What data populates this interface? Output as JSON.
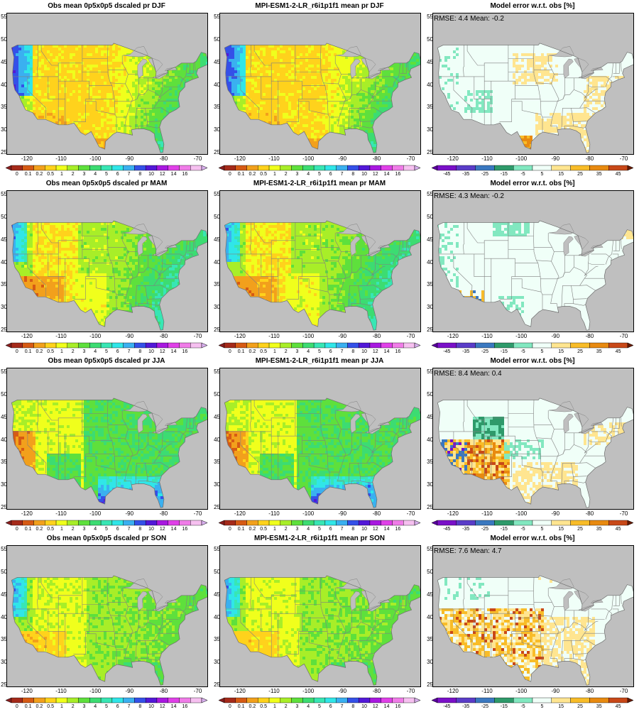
{
  "figure": {
    "colors": {
      "land_bg": "#bfbfbf",
      "state_lines": "#7f7f7f"
    },
    "precip_scale": {
      "labels": [
        "0",
        "0.1",
        "0.2",
        "0.5",
        "1",
        "2",
        "3",
        "4",
        "5",
        "6",
        "7",
        "8",
        "10",
        "12",
        "14",
        "16"
      ],
      "colors": [
        "#a52a1a",
        "#d65a14",
        "#f2a01c",
        "#ffd21c",
        "#f0ff1c",
        "#a8ee28",
        "#5ee03c",
        "#3cdc72",
        "#38e6b4",
        "#30e6e8",
        "#3ab0f0",
        "#3450e8",
        "#5218d8",
        "#a818e0",
        "#e040e8",
        "#f07ce8",
        "#f6c0f0"
      ],
      "under_color": "#8a1e1e",
      "over_color": "#d8b0ee"
    },
    "error_scale": {
      "labels": [
        "-45",
        "-35",
        "-25",
        "-15",
        "-5",
        "5",
        "15",
        "25",
        "35",
        "45"
      ],
      "colors": [
        "#7a10c8",
        "#5a3cc8",
        "#3a78c0",
        "#2e9a6a",
        "#82e8c0",
        "#f0fff8",
        "#ffe590",
        "#f8bc28",
        "#e88a10",
        "#c84818"
      ],
      "under_color": "#5a00a0",
      "over_color": "#6a1a00"
    },
    "xticks": [
      "-120",
      "-110",
      "-100",
      "-90",
      "-80",
      "-70"
    ],
    "yticks": [
      "55",
      "50",
      "45",
      "40",
      "35",
      "30",
      "25"
    ],
    "rows": [
      {
        "season": "DJF",
        "obs_title": "Obs mean 0p5x0p5 dscaled pr DJF",
        "model_title": "MPI-ESM1-2-LR_r6i1p1f1 mean pr DJF",
        "error_title": "Model error w.r.t. obs [%]",
        "stats": "RMSE: 4.4  Mean: -0.2",
        "obs_style": "winter",
        "error_style": "djf"
      },
      {
        "season": "MAM",
        "obs_title": "Obs mean 0p5x0p5 dscaled pr MAM",
        "model_title": "MPI-ESM1-2-LR_r6i1p1f1 mean pr MAM",
        "error_title": "Model error w.r.t. obs [%]",
        "stats": "RMSE: 4.3  Mean: -0.2",
        "obs_style": "spring",
        "error_style": "mam"
      },
      {
        "season": "JJA",
        "obs_title": "Obs mean 0p5x0p5 dscaled pr JJA",
        "model_title": "MPI-ESM1-2-LR_r6i1p1f1 mean pr JJA",
        "error_title": "Model error w.r.t. obs [%]",
        "stats": "RMSE: 8.4  Mean: 0.4",
        "obs_style": "summer",
        "error_style": "jja"
      },
      {
        "season": "SON",
        "obs_title": "Obs mean 0p5x0p5 dscaled pr SON",
        "model_title": "MPI-ESM1-2-LR_r6i1p1f1 mean pr SON",
        "error_title": "Model error w.r.t. obs [%]",
        "stats": "RMSE: 7.6  Mean: 4.7",
        "obs_style": "autumn",
        "error_style": "son"
      }
    ]
  }
}
